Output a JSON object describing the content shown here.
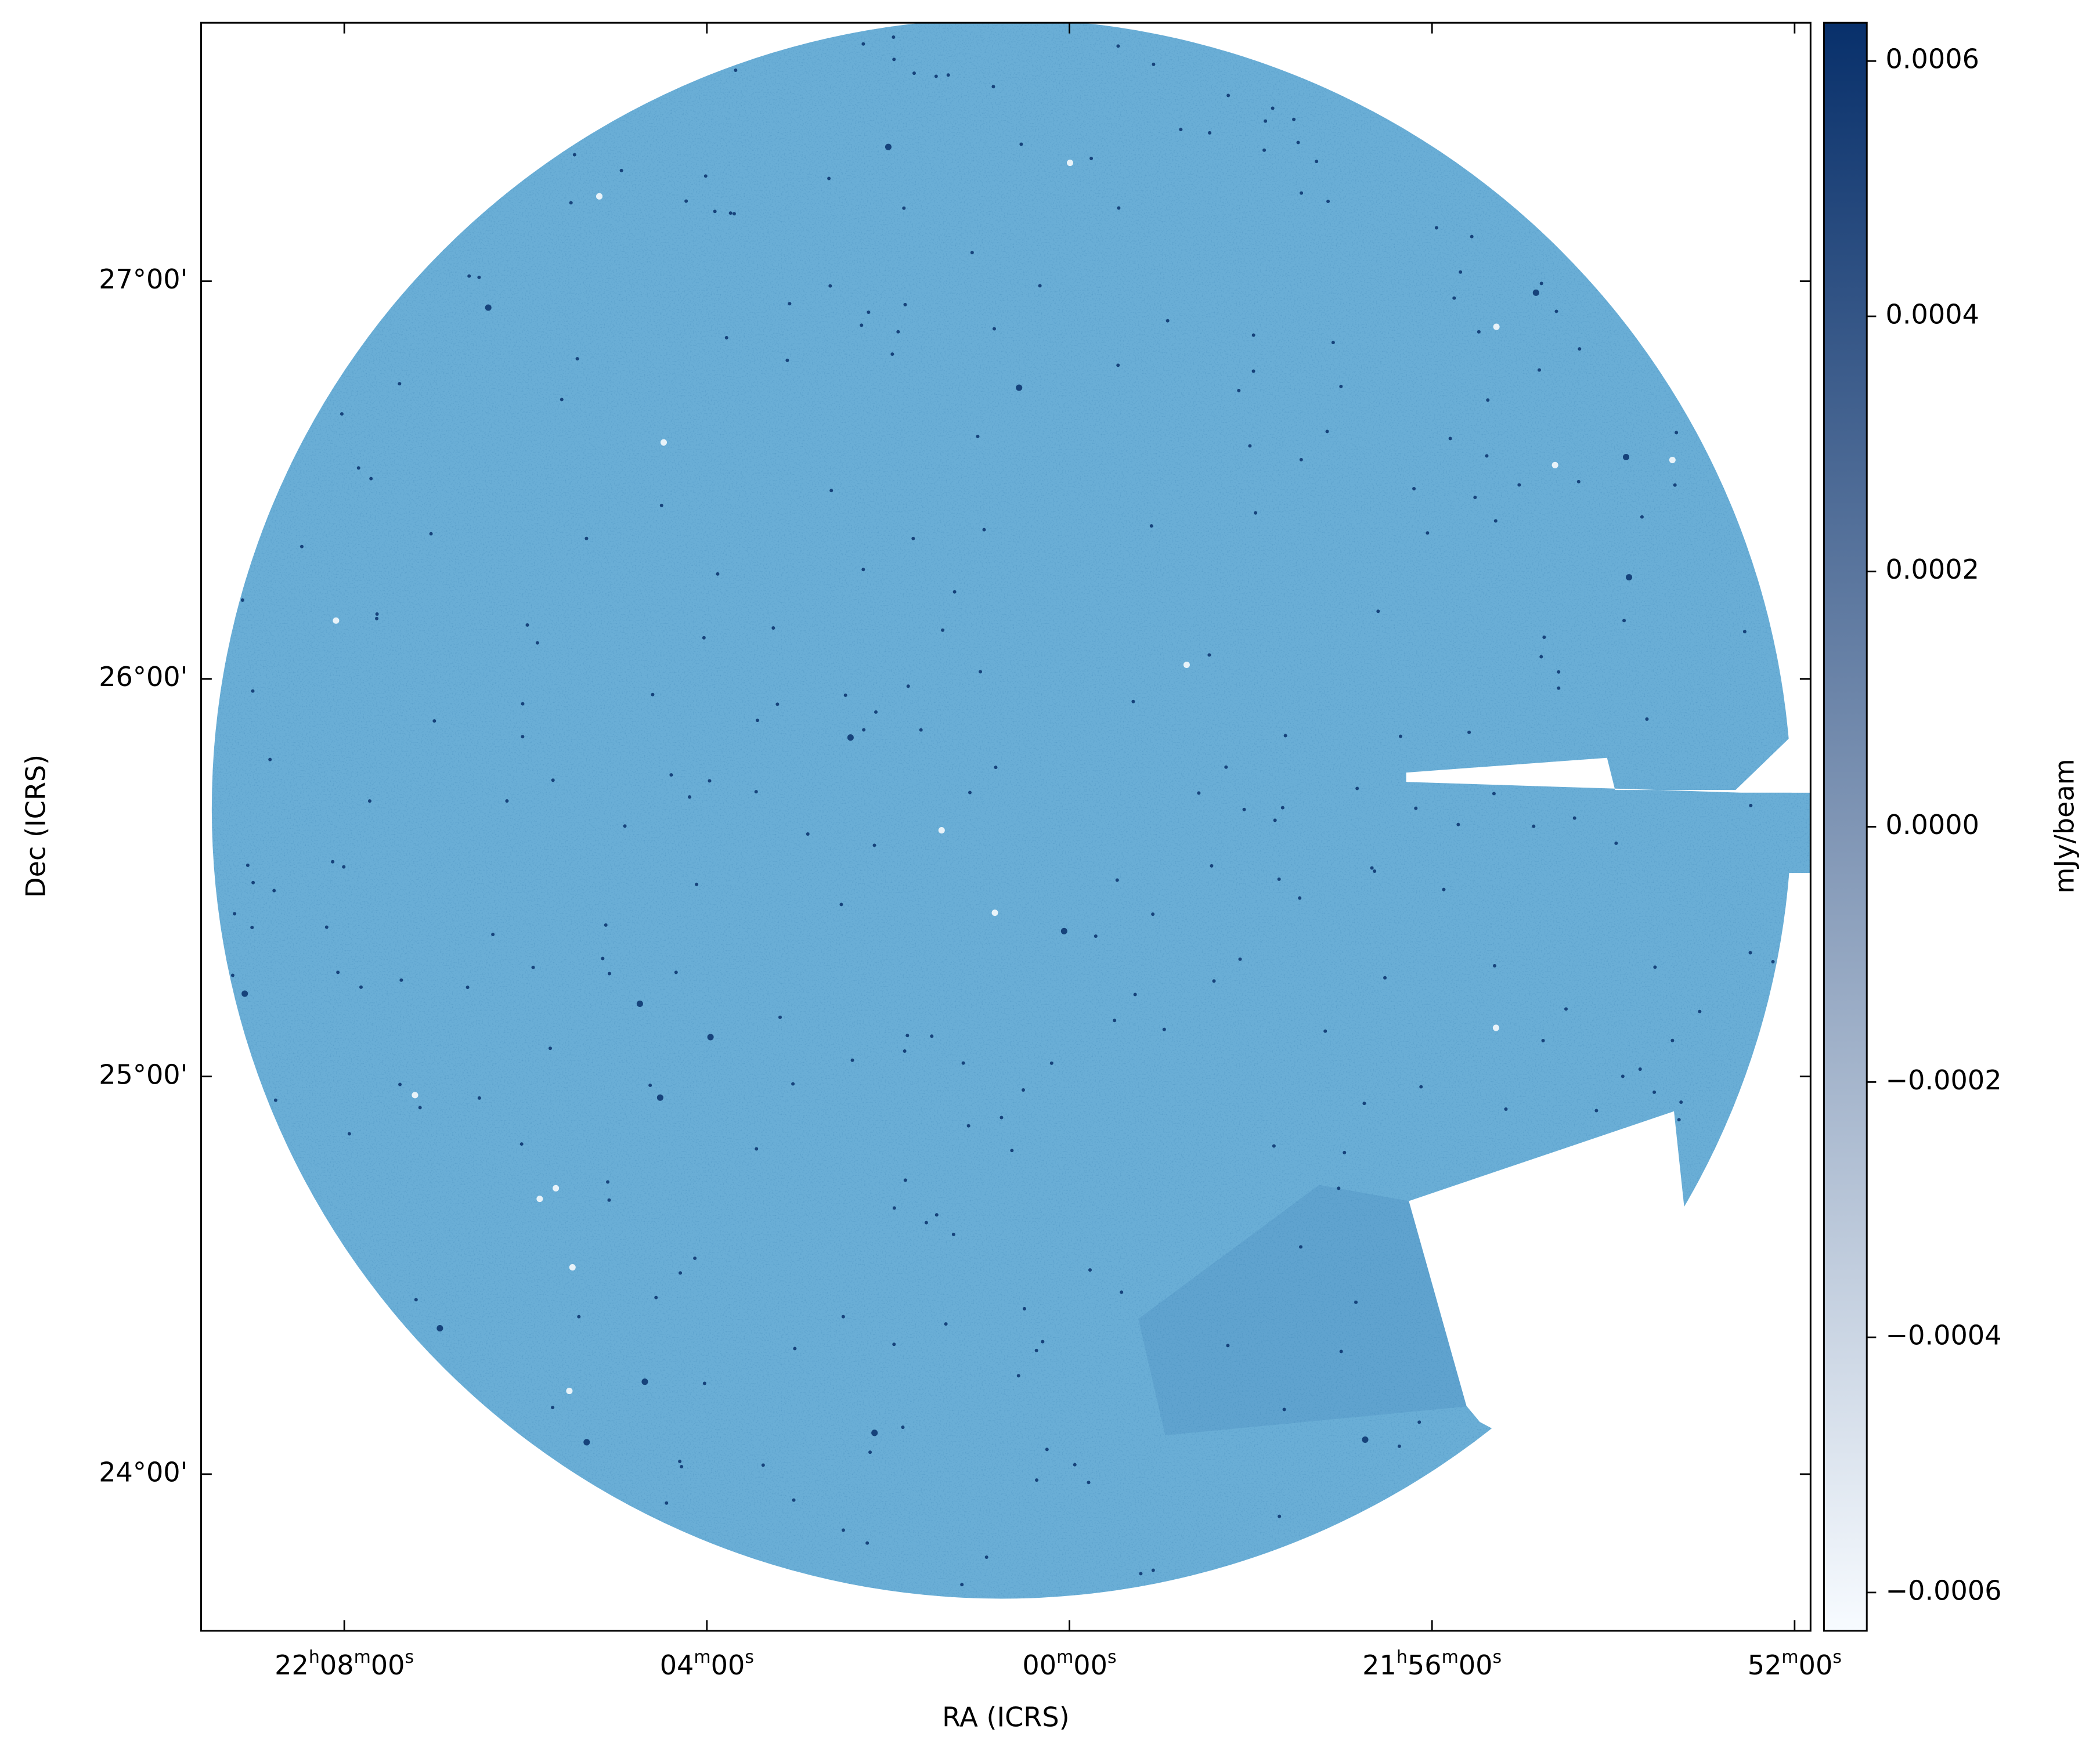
{
  "chart_data": {
    "type": "image",
    "xlabel": "RA (ICRS)",
    "ylabel": "Dec (ICRS)",
    "xlim": [
      332.395,
      327.956
    ],
    "ylim": [
      23.606,
      27.65
    ],
    "xticks": [
      {
        "value": 332,
        "label": "22h08m00s"
      },
      {
        "value": 331,
        "label": "04m00s"
      },
      {
        "value": 330,
        "label": "00m00s"
      },
      {
        "value": 329,
        "label": "21h56m00s"
      },
      {
        "value": 328,
        "label": "52m00s"
      }
    ],
    "yticks": [
      {
        "value": 27,
        "label": "27°00'"
      },
      {
        "value": 26,
        "label": "26°00'"
      },
      {
        "value": 25,
        "label": "25°00'"
      },
      {
        "value": 24,
        "label": "24°00'"
      }
    ],
    "color": "#6aaed6",
    "colorbar": {
      "label": "mJy/beam",
      "clim": [
        -0.00063,
        0.00063
      ],
      "colors": [
        "#f7fbff",
        "#08306b"
      ],
      "ticks": [
        0.0006,
        0.0004,
        0.0002,
        {
          "value": 0,
          "label": "0.0000"
        },
        {
          "value": -0.0002,
          "label": "−0.0002"
        },
        {
          "value": -0.0004,
          "label": "−0.0004"
        },
        {
          "value": -0.0006,
          "label": "−0.0006"
        }
      ]
    }
  }
}
